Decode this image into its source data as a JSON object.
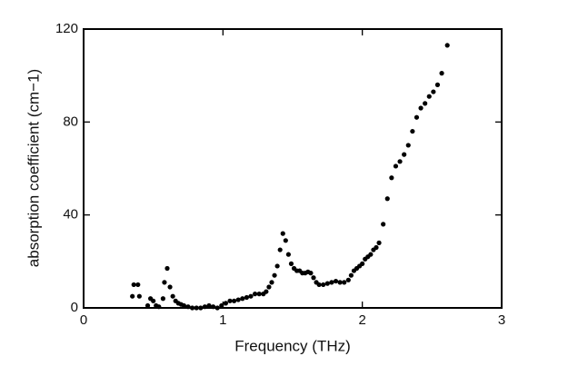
{
  "chart_data": {
    "type": "scatter",
    "x_label": "Frequency (THz)",
    "y_label": "absorption coefficient (cm−1)",
    "xlim": [
      0,
      3
    ],
    "xticks": [
      0,
      1,
      2,
      3
    ],
    "ylim": [
      0,
      120
    ],
    "yticks": [
      0,
      40,
      80,
      120
    ],
    "color": "#000000",
    "x": [
      0.35,
      0.36,
      0.39,
      0.4,
      0.46,
      0.48,
      0.5,
      0.52,
      0.54,
      0.57,
      0.58,
      0.6,
      0.62,
      0.64,
      0.66,
      0.68,
      0.7,
      0.72,
      0.75,
      0.78,
      0.81,
      0.84,
      0.87,
      0.9,
      0.93,
      0.96,
      0.99,
      1.02,
      1.05,
      1.08,
      1.11,
      1.14,
      1.17,
      1.2,
      1.23,
      1.26,
      1.29,
      1.31,
      1.33,
      1.35,
      1.37,
      1.39,
      1.41,
      1.43,
      1.45,
      1.47,
      1.49,
      1.51,
      1.53,
      1.55,
      1.57,
      1.59,
      1.61,
      1.63,
      1.65,
      1.67,
      1.69,
      1.72,
      1.75,
      1.78,
      1.81,
      1.84,
      1.87,
      1.9,
      1.92,
      1.94,
      1.96,
      1.98,
      2.0,
      2.02,
      2.04,
      2.06,
      2.08,
      2.1,
      2.12,
      2.15,
      2.18,
      2.21,
      2.24,
      2.27,
      2.3,
      2.33,
      2.36,
      2.39,
      2.42,
      2.45,
      2.48,
      2.51,
      2.54,
      2.57,
      2.61
    ],
    "values": [
      5,
      10,
      10,
      5,
      1,
      4,
      3,
      1,
      0.5,
      4,
      11,
      17,
      9,
      5,
      3,
      2,
      1.5,
      1,
      0.5,
      0,
      0,
      0,
      0.5,
      1,
      0.5,
      0,
      1,
      2,
      3,
      3,
      3.5,
      4,
      4.5,
      5,
      6,
      6,
      6,
      7,
      9,
      11,
      14,
      18,
      25,
      32,
      29,
      23,
      19,
      17,
      16,
      16,
      15,
      15,
      15.5,
      15,
      13,
      11,
      10,
      10,
      10.5,
      11,
      11.5,
      11,
      11,
      12,
      14,
      16,
      17,
      18,
      19,
      21,
      22,
      23,
      25,
      26,
      28,
      36,
      47,
      56,
      61,
      63,
      66,
      70,
      76,
      82,
      86,
      88,
      91,
      93,
      96,
      101,
      113
    ]
  }
}
